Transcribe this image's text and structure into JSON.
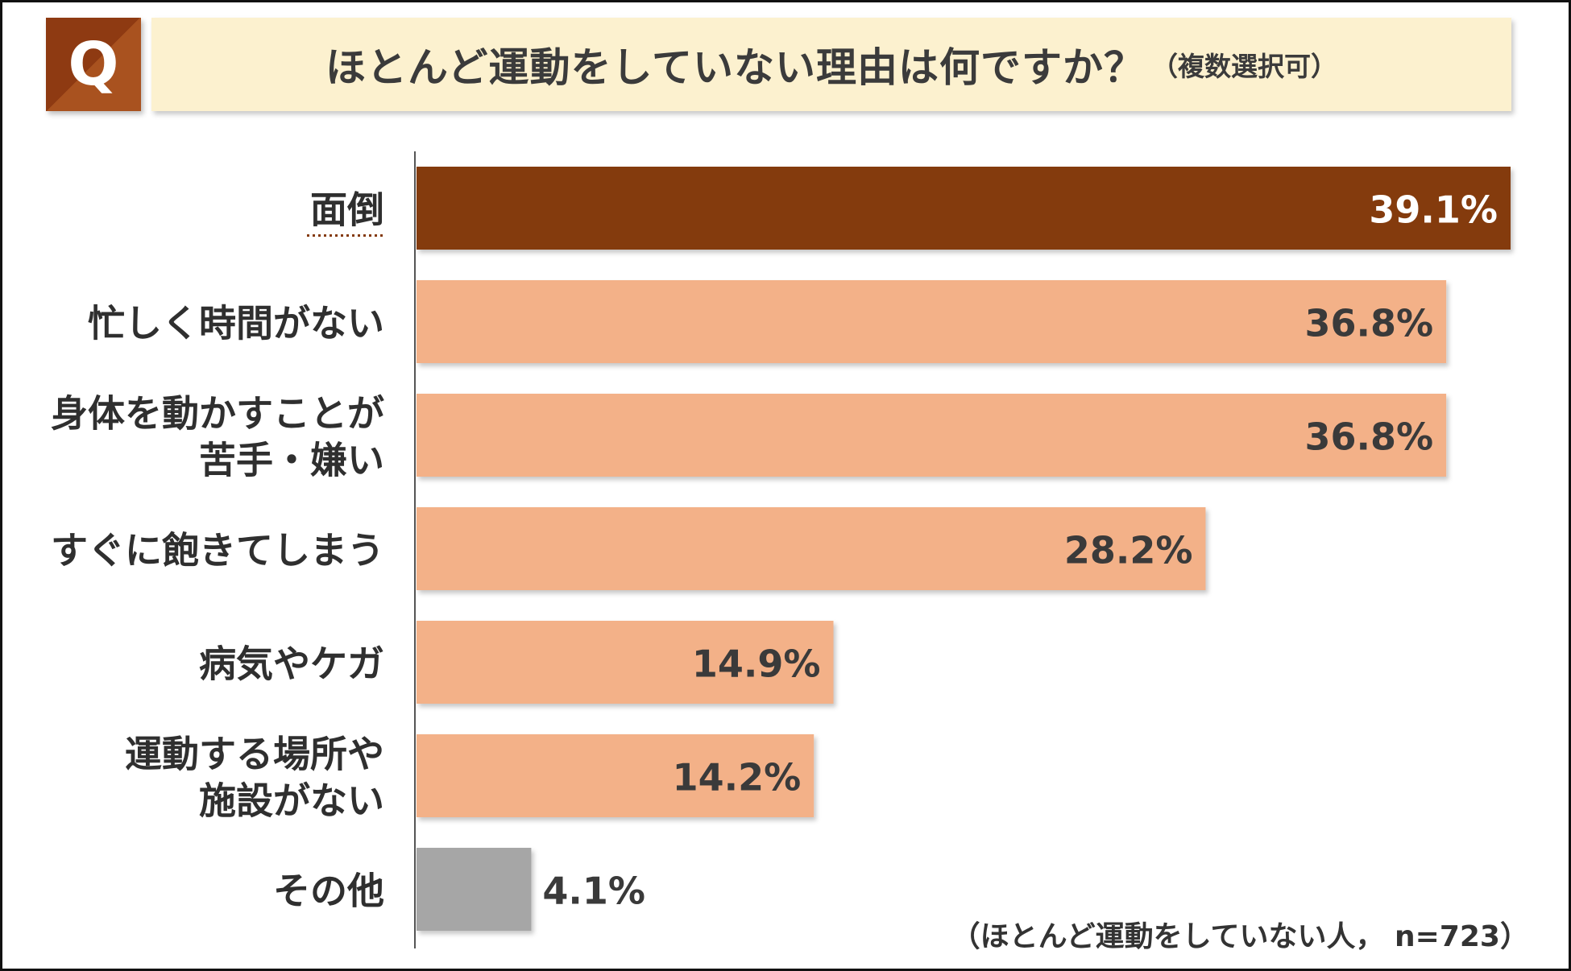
{
  "header": {
    "q_mark": "Q",
    "title": "ほとんど運動をしていない理由は何ですか？",
    "subtitle": "（複数選択可）"
  },
  "chart_data": {
    "type": "bar",
    "orientation": "horizontal",
    "categories": [
      [
        "面倒"
      ],
      [
        "忙しく時間がない"
      ],
      [
        "身体を動かすことが",
        "苦手・嫌い"
      ],
      [
        "すぐに飽きてしまう"
      ],
      [
        "病気やケガ"
      ],
      [
        "運動する場所や",
        "施設がない"
      ],
      [
        "その他"
      ]
    ],
    "values": [
      39.1,
      36.8,
      36.8,
      28.2,
      14.9,
      14.2,
      4.1
    ],
    "value_labels": [
      "39.1%",
      "36.8%",
      "36.8%",
      "28.2%",
      "14.9%",
      "14.2%",
      "4.1%"
    ],
    "bar_colors": [
      "#843a0d",
      "#f3b188",
      "#f3b188",
      "#f3b188",
      "#f3b188",
      "#f3b188",
      "#a6a6a6"
    ],
    "value_label_colors": [
      "#ffffff",
      "#3a3a3a",
      "#3a3a3a",
      "#3a3a3a",
      "#3a3a3a",
      "#3a3a3a",
      "#3a3a3a"
    ],
    "highlight_index": 0,
    "highlight_color": "#843a0d",
    "xlim": [
      0,
      39.1
    ],
    "unit": "%",
    "grid": false,
    "legend": "none"
  },
  "footnote": "（ほとんど運動をしていない人， n=723）"
}
